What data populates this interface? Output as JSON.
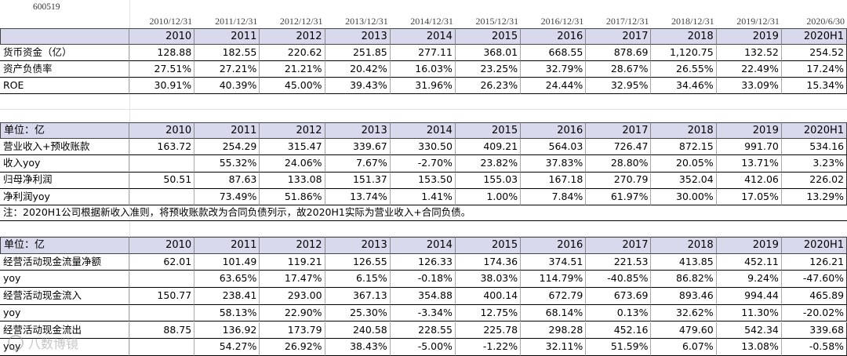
{
  "stock_code": "600519",
  "dates": [
    "2010/12/31",
    "2011/12/31",
    "2012/12/31",
    "2013/12/31",
    "2014/12/31",
    "2015/12/31",
    "2016/12/31",
    "2017/12/31",
    "2018/12/31",
    "2019/12/31",
    "2020/6/30"
  ],
  "table1": {
    "header": {
      "label": "",
      "years": [
        "2010",
        "2011",
        "2012",
        "2013",
        "2014",
        "2015",
        "2016",
        "2017",
        "2018",
        "2019",
        "2020H1"
      ]
    },
    "rows": [
      {
        "label": "货币资金（亿）",
        "values": [
          "128.88",
          "182.55",
          "220.62",
          "251.85",
          "277.11",
          "368.01",
          "668.55",
          "878.69",
          "1,120.75",
          "132.52",
          "254.52"
        ]
      },
      {
        "label": "资产负债率",
        "values": [
          "27.51%",
          "27.21%",
          "21.21%",
          "20.42%",
          "16.03%",
          "23.25%",
          "32.79%",
          "28.67%",
          "26.55%",
          "22.49%",
          "17.24%"
        ]
      },
      {
        "label": "ROE",
        "values": [
          "30.91%",
          "40.39%",
          "45.00%",
          "39.43%",
          "31.96%",
          "26.23%",
          "24.44%",
          "32.95%",
          "34.46%",
          "33.09%",
          "15.34%"
        ]
      }
    ]
  },
  "table2": {
    "header": {
      "label": "单位：亿",
      "years": [
        "2010",
        "2011",
        "2012",
        "2013",
        "2014",
        "2015",
        "2016",
        "2017",
        "2018",
        "2019",
        "2020H1"
      ]
    },
    "rows": [
      {
        "label": "营业收入+预收账款",
        "values": [
          "163.72",
          "254.29",
          "315.47",
          "339.67",
          "330.50",
          "409.21",
          "564.03",
          "726.47",
          "872.15",
          "991.70",
          "534.16"
        ]
      },
      {
        "label": "收入yoy",
        "values": [
          "",
          "55.32%",
          "24.06%",
          "7.67%",
          "-2.70%",
          "23.82%",
          "37.83%",
          "28.80%",
          "20.05%",
          "13.71%",
          "3.23%"
        ]
      },
      {
        "label": "归母净利润",
        "values": [
          "50.51",
          "87.63",
          "133.08",
          "151.37",
          "153.50",
          "155.03",
          "167.18",
          "270.79",
          "352.04",
          "412.06",
          "226.02"
        ]
      },
      {
        "label": "净利润yoy",
        "values": [
          "",
          "73.49%",
          "51.86%",
          "13.74%",
          "1.41%",
          "1.00%",
          "7.84%",
          "61.97%",
          "30.00%",
          "17.05%",
          "13.29%"
        ]
      }
    ],
    "note": "注：2020H1公司根据新收入准则，将预收账款改为合同负债列示，故2020H1实际为营业收入+合同负债。"
  },
  "table3": {
    "header": {
      "label": "单位：亿",
      "years": [
        "2010",
        "2011",
        "2012",
        "2013",
        "2014",
        "2015",
        "2016",
        "2017",
        "2018",
        "2019",
        "2020H1"
      ]
    },
    "rows": [
      {
        "label": "经营活动现金流量净额",
        "values": [
          "62.01",
          "101.49",
          "119.21",
          "126.55",
          "126.33",
          "174.36",
          "374.51",
          "221.53",
          "413.85",
          "452.11",
          "126.21"
        ]
      },
      {
        "label": "yoy",
        "values": [
          "",
          "63.65%",
          "17.47%",
          "6.15%",
          "-0.18%",
          "38.03%",
          "114.79%",
          "-40.85%",
          "86.82%",
          "9.24%",
          "-47.60%"
        ]
      },
      {
        "label": "经营活动现金流入",
        "values": [
          "150.77",
          "238.41",
          "293.00",
          "367.13",
          "354.88",
          "400.14",
          "672.79",
          "673.69",
          "893.46",
          "994.44",
          "465.89"
        ]
      },
      {
        "label": "yoy",
        "values": [
          "",
          "58.13%",
          "22.90%",
          "25.30%",
          "-3.34%",
          "12.75%",
          "68.14%",
          "0.13%",
          "32.62%",
          "11.30%",
          "-20.02%"
        ]
      },
      {
        "label": "经营活动现金流出",
        "values": [
          "88.75",
          "136.92",
          "173.79",
          "240.58",
          "228.55",
          "225.78",
          "298.28",
          "452.16",
          "479.60",
          "542.34",
          "339.68"
        ]
      },
      {
        "label": "yoy",
        "values": [
          "",
          "54.27%",
          "26.92%",
          "38.43%",
          "-5.00%",
          "-1.22%",
          "32.11%",
          "51.59%",
          "6.07%",
          "13.08%",
          "-0.58%"
        ]
      }
    ]
  },
  "watermark": {
    "text": "八数博镜"
  }
}
